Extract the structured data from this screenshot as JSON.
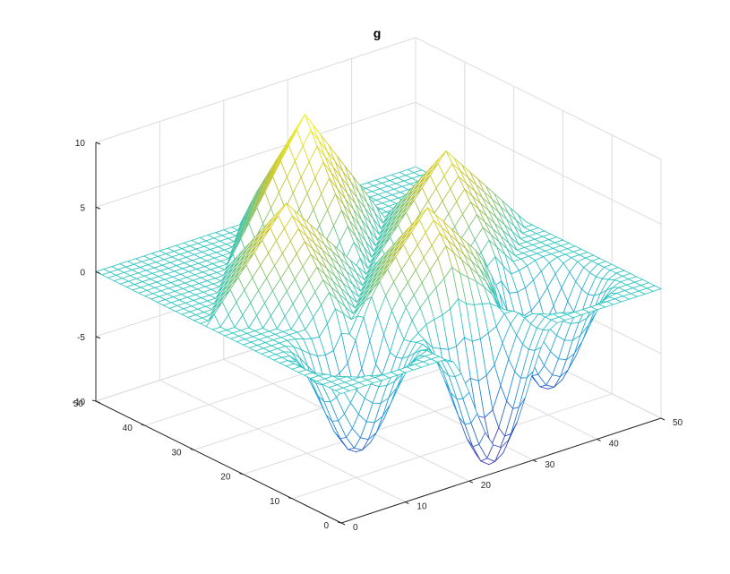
{
  "chart_data": {
    "type": "surface-mesh",
    "title": "g",
    "xlabel": "",
    "ylabel": "",
    "zlabel": "",
    "x_ticks": [
      "0",
      "10",
      "20",
      "30",
      "40",
      "50"
    ],
    "y_ticks": [
      "0",
      "10",
      "20",
      "30",
      "40",
      "50"
    ],
    "z_ticks": [
      "-10",
      "-5",
      "0",
      "5",
      "10"
    ],
    "xlim": [
      0,
      50
    ],
    "ylim": [
      0,
      50
    ],
    "zlim": [
      -10,
      10
    ],
    "grid": true,
    "colormap": "parula",
    "grid_size": 41,
    "surface_features": {
      "peaks": [
        {
          "x": 25,
          "y": 40,
          "z": 10
        },
        {
          "x": 12.5,
          "y": 27.5,
          "z": 7.5
        },
        {
          "x": 37.5,
          "y": 27.5,
          "z": 7.5
        },
        {
          "x": 25,
          "y": 15,
          "z": 7.5
        }
      ],
      "valleys": [
        {
          "x": 25,
          "y": 2.5,
          "z": -10
        },
        {
          "x": 10,
          "y": 10,
          "z": -8
        },
        {
          "x": 40,
          "y": 10,
          "z": -8
        }
      ],
      "edge_level": 0
    }
  },
  "colors": {
    "low": "#3e26a8",
    "mid_low": "#1f8ddf",
    "mid": "#2bc4c0",
    "mid_high": "#c5c12c",
    "high": "#f9fb0e"
  }
}
